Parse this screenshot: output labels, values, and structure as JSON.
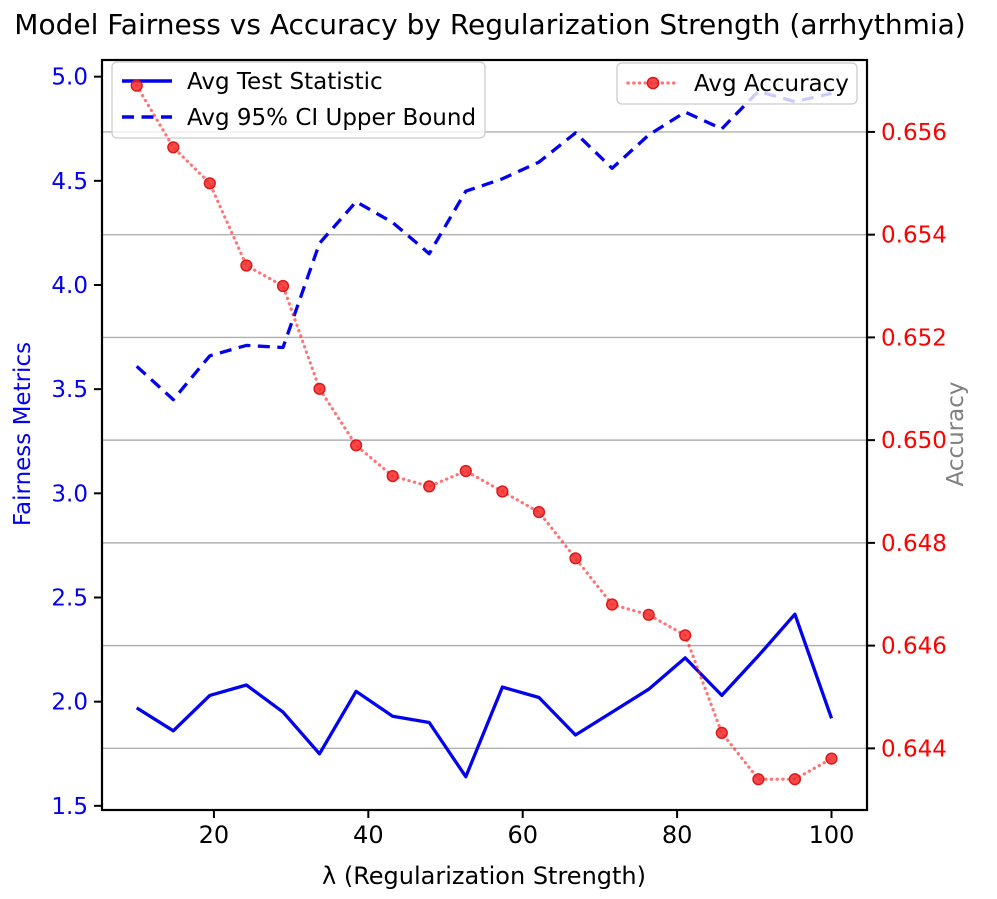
{
  "title": "Model Fairness vs Accuracy by Regularization Strength (arrhythmia)",
  "legend_fairness": {
    "items": [
      {
        "label": "Avg Test Statistic",
        "style": "solid"
      },
      {
        "label": "Avg 95% CI Upper Bound",
        "style": "dashed"
      }
    ]
  },
  "legend_accuracy": {
    "items": [
      {
        "label": "Avg Accuracy",
        "style": "dotted-marker"
      }
    ]
  },
  "axes": {
    "x": {
      "label": "λ (Regularization Strength)",
      "ticks": [
        "20",
        "40",
        "60",
        "80",
        "100"
      ],
      "range": [
        5.5,
        104.6
      ]
    },
    "y_left": {
      "label": "Fairness Metrics",
      "ticks": [
        "5.0",
        "4.5",
        "4.0",
        "3.5",
        "3.0",
        "2.5",
        "2.0",
        "1.5"
      ],
      "range": [
        1.48,
        5.08
      ]
    },
    "y_right": {
      "label": "Accuracy",
      "ticks": [
        "0.656",
        "0.654",
        "0.652",
        "0.650",
        "0.648",
        "0.646",
        "0.644"
      ],
      "range": [
        0.6428,
        0.6574
      ]
    }
  },
  "colors": {
    "blue_line": "#0202ee",
    "red_line": "#ff2020",
    "red_tick_label": "#ff0000",
    "blue_tick_label": "#0202ee",
    "gray_axis_label": "#808080",
    "grid": "#b0b0b0",
    "spine": "#000000",
    "legend_border": "#cccccc"
  },
  "chart_data": {
    "type": "line",
    "title": "Model Fairness vs Accuracy by Regularization Strength (arrhythmia)",
    "xlabel": "λ (Regularization Strength)",
    "ylabel_left": "Fairness Metrics",
    "ylabel_right": "Accuracy",
    "xlim": [
      5.5,
      104.6
    ],
    "ylim_left": [
      1.48,
      5.08
    ],
    "ylim_right": [
      0.6428,
      0.6574
    ],
    "grid": "horizontal gridlines at right-axis ticks",
    "legend_positions": [
      "upper left",
      "upper right"
    ],
    "x": [
      10,
      14.74,
      19.47,
      24.21,
      28.95,
      33.68,
      38.42,
      43.16,
      47.89,
      52.63,
      57.37,
      62.11,
      66.84,
      71.58,
      76.32,
      81.05,
      85.79,
      90.53,
      95.26,
      100
    ],
    "series": [
      {
        "name": "Avg Test Statistic",
        "axis": "left",
        "style": "solid",
        "color": "#0202ee",
        "values": [
          1.97,
          1.86,
          2.03,
          2.08,
          1.95,
          1.75,
          2.05,
          1.93,
          1.9,
          1.64,
          2.07,
          2.02,
          1.84,
          1.95,
          2.06,
          2.21,
          2.03,
          2.22,
          2.42,
          1.92
        ]
      },
      {
        "name": "Avg 95% CI Upper Bound",
        "axis": "left",
        "style": "dashed",
        "color": "#0202ee",
        "values": [
          3.61,
          3.45,
          3.66,
          3.71,
          3.7,
          4.2,
          4.4,
          4.3,
          4.15,
          4.45,
          4.51,
          4.59,
          4.73,
          4.56,
          4.72,
          4.83,
          4.75,
          4.93,
          4.88,
          4.92
        ]
      },
      {
        "name": "Avg Accuracy",
        "axis": "right",
        "style": "dotted",
        "marker": "circle",
        "color": "#ff2020",
        "values": [
          0.6569,
          0.6557,
          0.655,
          0.6534,
          0.653,
          0.651,
          0.6499,
          0.6493,
          0.6491,
          0.6494,
          0.649,
          0.6486,
          0.6477,
          0.6468,
          0.6466,
          0.6462,
          0.6443,
          0.6434,
          0.6434,
          0.6438
        ]
      }
    ]
  }
}
